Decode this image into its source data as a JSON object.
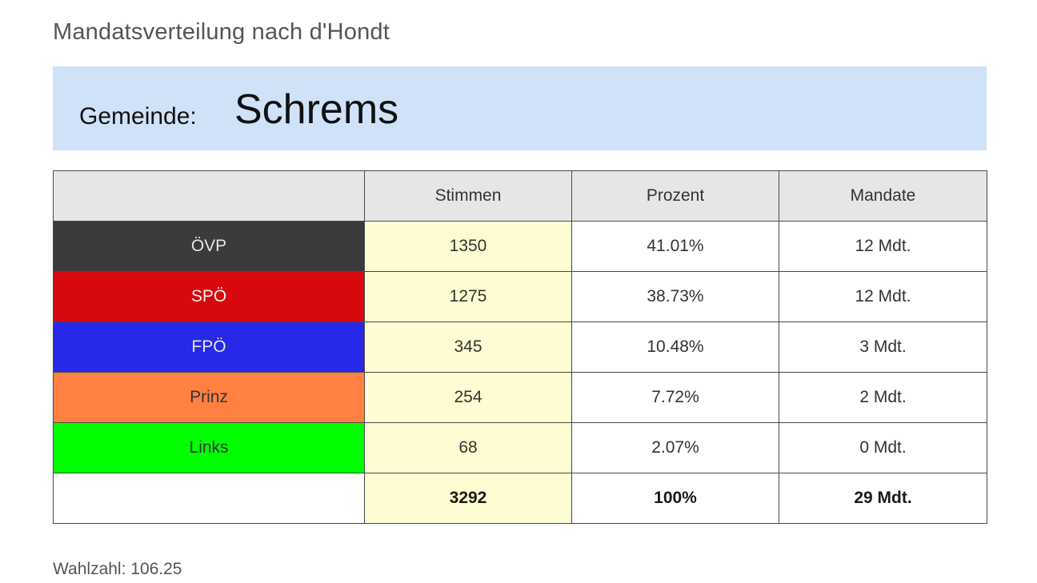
{
  "title": "Mandatsverteilung nach d'Hondt",
  "municipality": {
    "label": "Gemeinde:",
    "name": "Schrems",
    "banner_color": "#cfe2f8"
  },
  "table": {
    "headers": [
      "",
      "Stimmen",
      "Prozent",
      "Mandate"
    ],
    "rows": [
      {
        "party": "ÖVP",
        "votes": "1350",
        "percent": "41.01%",
        "seats": "12 Mdt.",
        "color": "#3b3b3b",
        "text_color": "#e6e6e6"
      },
      {
        "party": "SPÖ",
        "votes": "1275",
        "percent": "38.73%",
        "seats": "12 Mdt.",
        "color": "#d8090e",
        "text_color": "#f2f2f2"
      },
      {
        "party": "FPÖ",
        "votes": "345",
        "percent": "10.48%",
        "seats": "3 Mdt.",
        "color": "#2828e8",
        "text_color": "#e6e6e6"
      },
      {
        "party": "Prinz",
        "votes": "254",
        "percent": "7.72%",
        "seats": "2 Mdt.",
        "color": "#fe8142",
        "text_color": "#333333"
      },
      {
        "party": "Links",
        "votes": "68",
        "percent": "2.07%",
        "seats": "0 Mdt.",
        "color": "#00ff00",
        "text_color": "#333333"
      }
    ],
    "total": {
      "party": "",
      "votes": "3292",
      "percent": "100%",
      "seats": "29 Mdt."
    }
  },
  "footer": {
    "quota": "Wahlzahl: 106.25"
  }
}
